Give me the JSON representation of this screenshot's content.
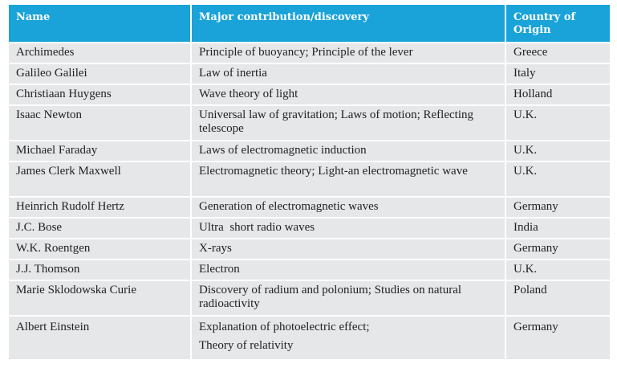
{
  "table": {
    "headers": {
      "name": "Name",
      "contribution": "Major contribution/discovery",
      "country": "Country of Origin"
    },
    "rows": [
      {
        "name": "Archimedes",
        "contribution": "Principle of buoyancy; Principle of the lever",
        "country": "Greece"
      },
      {
        "name": "Galileo Galilei",
        "contribution": "Law of inertia",
        "country": "Italy"
      },
      {
        "name": "Christiaan Huygens",
        "contribution": "Wave theory of light",
        "country": "Holland"
      },
      {
        "name": "Isaac Newton",
        "contribution": "Universal law of gravitation; Laws of motion; Reflecting telescope",
        "country": "U.K."
      },
      {
        "name": "Michael Faraday",
        "contribution": "Laws of electromagnetic induction",
        "country": "U.K."
      },
      {
        "name": "James Clerk Maxwell",
        "contribution": "Electromagnetic theory; Light-an electromagnetic wave",
        "country": "U.K."
      },
      {
        "name": "Heinrich Rudolf Hertz",
        "contribution": "Generation of electromagnetic waves",
        "country": "Germany"
      },
      {
        "name": "J.C. Bose",
        "contribution": "Ultra  short radio waves",
        "country": "India"
      },
      {
        "name": "W.K. Roentgen",
        "contribution": "X-rays",
        "country": "Germany"
      },
      {
        "name": "J.J. Thomson",
        "contribution": "Electron",
        "country": "U.K."
      },
      {
        "name": "Marie Sklodowska Curie",
        "contribution": "Discovery of radium and polonium; Studies on natural radioactivity",
        "country": "Poland"
      },
      {
        "name": "Albert Einstein",
        "contribution_line1": "Explanation of photoelectric effect;",
        "contribution_line2": "Theory of relativity",
        "country": "Germany"
      }
    ]
  },
  "colors": {
    "header_bg": "#1aa3d8",
    "row_bg": "#e6e7e9"
  }
}
